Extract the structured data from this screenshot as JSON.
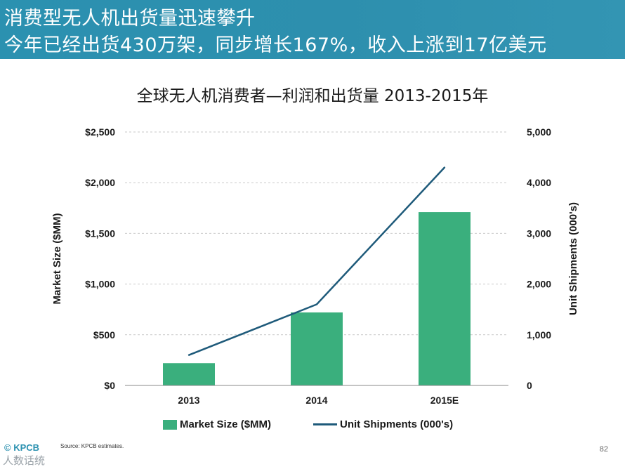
{
  "header": {
    "line1": "消费型无人机出货量迅速攀升",
    "line2": "今年已经出货430万架，同步增长167%，收入上涨到17亿美元"
  },
  "chart_data": {
    "type": "bar+line",
    "title": "全球无人机消费者—利润和出货量 2013-2015年",
    "categories": [
      "2013",
      "2014",
      "2015E"
    ],
    "series": [
      {
        "name": "Market Size ($MM)",
        "type": "bar",
        "axis": "left",
        "values": [
          220,
          720,
          1710
        ]
      },
      {
        "name": "Unit Shipments (000's)",
        "type": "line",
        "axis": "right",
        "values": [
          600,
          1600,
          4300
        ]
      }
    ],
    "ylabel_left": "Market Size ($MM)",
    "ylabel_right": "Unit Shipments (000's)",
    "ylim_left": [
      0,
      2500
    ],
    "ylim_right": [
      0,
      5000
    ],
    "yticks_left": [
      "$0",
      "$500",
      "$1,000",
      "$1,500",
      "$2,000",
      "$2,500"
    ],
    "yticks_right": [
      "0",
      "1,000",
      "2,000",
      "3,000",
      "4,000",
      "5,000"
    ],
    "grid": "horizontal dashed",
    "legend_position": "bottom",
    "colors": {
      "bar": "#3aaf7d",
      "line": "#1e5a7a"
    }
  },
  "footer": {
    "logo": "© KPCB",
    "source": "Source: KPCB estimates.",
    "page": "82",
    "watermark": "人数话统"
  }
}
